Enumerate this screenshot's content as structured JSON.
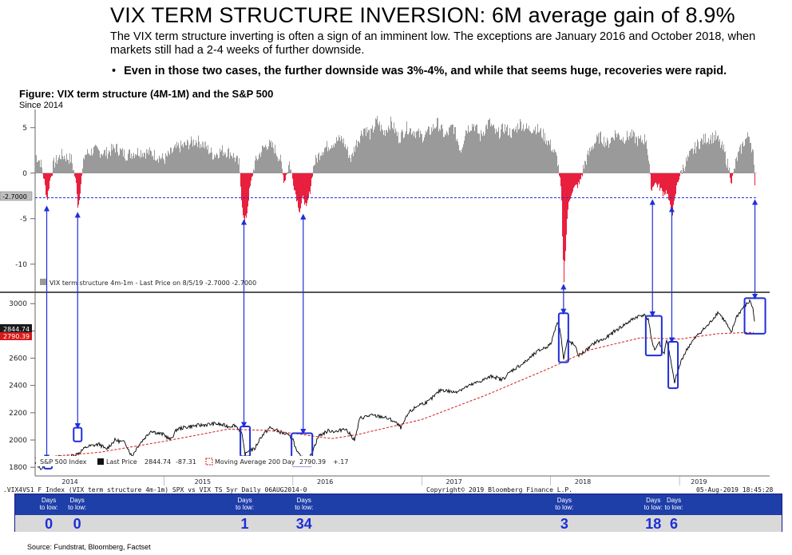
{
  "header": {
    "title": "VIX TERM STRUCTURE INVERSION: 6M average gain of 8.9%",
    "subtitle": "The VIX term structure inverting is often a sign of an imminent low.  The exceptions are January 2016 and October 2018, when markets still had a 2-4 weeks of further downside.",
    "bullet": "Even in those two cases, the further downside was 3%-4%, and while that seems huge, recoveries were rapid."
  },
  "figure": {
    "title": "Figure: VIX term structure (4M-1M) and the S&P 500",
    "subtitle": "Since 2014"
  },
  "chart_data": [
    {
      "type": "bar",
      "title": "VIX term structure 4m-1m",
      "legend": "VIX term structure 4m-1m - Last Price on 8/5/19 -2.7000  -2.7000",
      "last_price": -2.7,
      "last_price_label": "-2.7000",
      "threshold": -2.7,
      "ylim": [
        -13,
        7
      ],
      "yticks": [
        5,
        0,
        -5,
        -10
      ],
      "ytick_labels": [
        "5",
        "0",
        "-5",
        "-10"
      ],
      "x_start": 2014.0,
      "x_end": 2019.6,
      "series_points": [
        [
          2014.0,
          2.0
        ],
        [
          2014.04,
          1.2
        ],
        [
          2014.07,
          -1.0
        ],
        [
          2014.09,
          -3.0
        ],
        [
          2014.11,
          -1.0
        ],
        [
          2014.14,
          1.0
        ],
        [
          2014.2,
          2.0
        ],
        [
          2014.28,
          1.5
        ],
        [
          2014.32,
          -1.5
        ],
        [
          2014.33,
          -4.0
        ],
        [
          2014.35,
          -1.5
        ],
        [
          2014.38,
          2.0
        ],
        [
          2014.45,
          2.5
        ],
        [
          2014.55,
          2.2
        ],
        [
          2014.62,
          2.8
        ],
        [
          2014.7,
          2.0
        ],
        [
          2014.8,
          2.4
        ],
        [
          2014.9,
          2.2
        ],
        [
          2015.0,
          1.5
        ],
        [
          2015.05,
          2.2
        ],
        [
          2015.1,
          2.8
        ],
        [
          2015.15,
          3.0
        ],
        [
          2015.25,
          3.6
        ],
        [
          2015.3,
          3.2
        ],
        [
          2015.38,
          2.0
        ],
        [
          2015.45,
          2.5
        ],
        [
          2015.52,
          2.2
        ],
        [
          2015.58,
          1.0
        ],
        [
          2015.6,
          -3.0
        ],
        [
          2015.62,
          -5.5
        ],
        [
          2015.64,
          -4.5
        ],
        [
          2015.66,
          -2.0
        ],
        [
          2015.7,
          1.0
        ],
        [
          2015.75,
          2.4
        ],
        [
          2015.8,
          3.2
        ],
        [
          2015.85,
          2.8
        ],
        [
          2015.9,
          1.5
        ],
        [
          2015.93,
          -1.0
        ],
        [
          2015.97,
          1.2
        ],
        [
          2016.0,
          -1.0
        ],
        [
          2016.03,
          -3.0
        ],
        [
          2016.05,
          -4.2
        ],
        [
          2016.08,
          -2.5
        ],
        [
          2016.1,
          -4.0
        ],
        [
          2016.13,
          -2.0
        ],
        [
          2016.16,
          1.0
        ],
        [
          2016.22,
          2.5
        ],
        [
          2016.3,
          3.3
        ],
        [
          2016.38,
          3.8
        ],
        [
          2016.45,
          1.5
        ],
        [
          2016.48,
          3.0
        ],
        [
          2016.55,
          5.0
        ],
        [
          2016.6,
          4.2
        ],
        [
          2016.65,
          5.8
        ],
        [
          2016.7,
          4.4
        ],
        [
          2016.76,
          5.6
        ],
        [
          2016.82,
          3.8
        ],
        [
          2016.88,
          5.0
        ],
        [
          2016.94,
          4.6
        ],
        [
          2017.0,
          4.0
        ],
        [
          2017.06,
          4.6
        ],
        [
          2017.12,
          5.5
        ],
        [
          2017.18,
          4.0
        ],
        [
          2017.24,
          5.2
        ],
        [
          2017.3,
          2.5
        ],
        [
          2017.34,
          4.8
        ],
        [
          2017.4,
          5.4
        ],
        [
          2017.45,
          4.0
        ],
        [
          2017.52,
          5.6
        ],
        [
          2017.58,
          4.2
        ],
        [
          2017.64,
          5.0
        ],
        [
          2017.7,
          4.3
        ],
        [
          2017.76,
          5.5
        ],
        [
          2017.82,
          4.8
        ],
        [
          2017.88,
          5.0
        ],
        [
          2017.94,
          4.2
        ],
        [
          2018.0,
          3.0
        ],
        [
          2018.05,
          1.5
        ],
        [
          2018.08,
          -2.0
        ],
        [
          2018.09,
          -8.0
        ],
        [
          2018.1,
          -12.0
        ],
        [
          2018.11,
          -9.0
        ],
        [
          2018.13,
          -4.0
        ],
        [
          2018.16,
          -2.0
        ],
        [
          2018.19,
          -1.5
        ],
        [
          2018.22,
          -1.2
        ],
        [
          2018.26,
          1.0
        ],
        [
          2018.32,
          3.0
        ],
        [
          2018.38,
          4.0
        ],
        [
          2018.44,
          3.2
        ],
        [
          2018.5,
          4.4
        ],
        [
          2018.56,
          3.8
        ],
        [
          2018.62,
          4.2
        ],
        [
          2018.68,
          3.5
        ],
        [
          2018.74,
          3.8
        ],
        [
          2018.76,
          1.0
        ],
        [
          2018.78,
          -2.0
        ],
        [
          2018.8,
          -1.0
        ],
        [
          2018.84,
          -1.5
        ],
        [
          2018.87,
          -2.2
        ],
        [
          2018.9,
          -2.0
        ],
        [
          2018.92,
          -3.5
        ],
        [
          2018.94,
          -4.6
        ],
        [
          2018.96,
          -3.0
        ],
        [
          2018.98,
          -1.0
        ],
        [
          2019.02,
          0.5
        ],
        [
          2019.08,
          2.0
        ],
        [
          2019.14,
          3.2
        ],
        [
          2019.2,
          3.8
        ],
        [
          2019.28,
          4.0
        ],
        [
          2019.34,
          2.5
        ],
        [
          2019.38,
          0.5
        ],
        [
          2019.4,
          -1.0
        ],
        [
          2019.44,
          1.5
        ],
        [
          2019.5,
          3.5
        ],
        [
          2019.54,
          4.2
        ],
        [
          2019.57,
          2.0
        ],
        [
          2019.585,
          -2.7
        ]
      ]
    },
    {
      "type": "line",
      "title": "S&P 500 Index",
      "legend_name": "S&P 500 Index",
      "legend_last": "Last Price",
      "last_price_value": "2844.74",
      "last_change": "-87.31",
      "ma_legend": "Moving Average 200 Day",
      "ma_value": "2790.39",
      "ma_change": "+.17",
      "last_price_label": "2844.74",
      "ma_label": "2790.39",
      "ylim": [
        1760,
        3060
      ],
      "yticks": [
        3000,
        2800,
        2600,
        2400,
        2200,
        2000,
        1800
      ],
      "ytick_labels": [
        "3000",
        "2800",
        "2600",
        "2400",
        "2200",
        "2000",
        "1800"
      ],
      "x_labels": [
        "2014",
        "2015",
        "2016",
        "2017",
        "2018",
        "2019"
      ],
      "x_label_positions": [
        2014.27,
        2015.3,
        2016.25,
        2017.25,
        2018.25,
        2019.15
      ],
      "x_start": 2014.0,
      "x_end": 2019.6,
      "price_points": [
        [
          2014.0,
          1830
        ],
        [
          2014.05,
          1790
        ],
        [
          2014.1,
          1850
        ],
        [
          2014.2,
          1880
        ],
        [
          2014.25,
          1870
        ],
        [
          2014.33,
          1900
        ],
        [
          2014.4,
          1950
        ],
        [
          2014.5,
          1970
        ],
        [
          2014.55,
          1930
        ],
        [
          2014.62,
          2000
        ],
        [
          2014.7,
          1980
        ],
        [
          2014.75,
          1880
        ],
        [
          2014.8,
          1960
        ],
        [
          2014.9,
          2070
        ],
        [
          2014.95,
          2050
        ],
        [
          2015.0,
          2040
        ],
        [
          2015.05,
          2000
        ],
        [
          2015.1,
          2080
        ],
        [
          2015.2,
          2100
        ],
        [
          2015.3,
          2110
        ],
        [
          2015.4,
          2120
        ],
        [
          2015.5,
          2100
        ],
        [
          2015.55,
          2110
        ],
        [
          2015.6,
          2060
        ],
        [
          2015.63,
          1890
        ],
        [
          2015.66,
          1930
        ],
        [
          2015.7,
          1930
        ],
        [
          2015.75,
          2020
        ],
        [
          2015.82,
          2090
        ],
        [
          2015.9,
          2060
        ],
        [
          2015.95,
          2040
        ],
        [
          2016.0,
          2010
        ],
        [
          2016.03,
          1910
        ],
        [
          2016.06,
          1880
        ],
        [
          2016.1,
          1830
        ],
        [
          2016.13,
          1870
        ],
        [
          2016.2,
          2030
        ],
        [
          2016.28,
          2070
        ],
        [
          2016.35,
          2060
        ],
        [
          2016.4,
          2090
        ],
        [
          2016.48,
          2000
        ],
        [
          2016.52,
          2160
        ],
        [
          2016.6,
          2180
        ],
        [
          2016.7,
          2170
        ],
        [
          2016.78,
          2140
        ],
        [
          2016.84,
          2090
        ],
        [
          2016.9,
          2200
        ],
        [
          2016.98,
          2260
        ],
        [
          2017.05,
          2280
        ],
        [
          2017.15,
          2370
        ],
        [
          2017.25,
          2350
        ],
        [
          2017.35,
          2390
        ],
        [
          2017.45,
          2430
        ],
        [
          2017.55,
          2470
        ],
        [
          2017.62,
          2440
        ],
        [
          2017.7,
          2510
        ],
        [
          2017.8,
          2570
        ],
        [
          2017.9,
          2650
        ],
        [
          2018.0,
          2700
        ],
        [
          2018.05,
          2870
        ],
        [
          2018.08,
          2780
        ],
        [
          2018.1,
          2590
        ],
        [
          2018.13,
          2730
        ],
        [
          2018.18,
          2700
        ],
        [
          2018.22,
          2620
        ],
        [
          2018.28,
          2660
        ],
        [
          2018.35,
          2720
        ],
        [
          2018.42,
          2740
        ],
        [
          2018.5,
          2800
        ],
        [
          2018.58,
          2850
        ],
        [
          2018.66,
          2900
        ],
        [
          2018.72,
          2920
        ],
        [
          2018.76,
          2880
        ],
        [
          2018.78,
          2740
        ],
        [
          2018.81,
          2660
        ],
        [
          2018.84,
          2720
        ],
        [
          2018.88,
          2630
        ],
        [
          2018.9,
          2740
        ],
        [
          2018.93,
          2590
        ],
        [
          2018.96,
          2420
        ],
        [
          2018.98,
          2480
        ],
        [
          2019.02,
          2600
        ],
        [
          2019.08,
          2700
        ],
        [
          2019.15,
          2780
        ],
        [
          2019.22,
          2840
        ],
        [
          2019.3,
          2940
        ],
        [
          2019.36,
          2860
        ],
        [
          2019.4,
          2780
        ],
        [
          2019.44,
          2900
        ],
        [
          2019.5,
          2980
        ],
        [
          2019.55,
          3020
        ],
        [
          2019.57,
          2960
        ],
        [
          2019.585,
          2844
        ]
      ],
      "ma_points": [
        [
          2014.0,
          1870
        ],
        [
          2014.5,
          1910
        ],
        [
          2015.0,
          1990
        ],
        [
          2015.5,
          2080
        ],
        [
          2015.8,
          2070
        ],
        [
          2016.0,
          2050
        ],
        [
          2016.3,
          2010
        ],
        [
          2016.5,
          2040
        ],
        [
          2017.0,
          2150
        ],
        [
          2017.5,
          2330
        ],
        [
          2018.0,
          2530
        ],
        [
          2018.3,
          2660
        ],
        [
          2018.7,
          2750
        ],
        [
          2019.0,
          2740
        ],
        [
          2019.3,
          2780
        ],
        [
          2019.585,
          2790
        ]
      ]
    }
  ],
  "footer": {
    "left_text": ".VIX4VS1 F Index (VIX term structure 4m-1m) SPX vs VIX TS 5yr  Daily 06AUG2014-0",
    "copyright": "Copyright© 2019 Bloomberg Finance L.P.",
    "datetime": "05-Aug-2019 18:45:28"
  },
  "days_to_low": {
    "label": "Days to low:",
    "label_line1": "Days",
    "label_line2": "to low:",
    "events": [
      {
        "x": 2014.1,
        "value": "0"
      },
      {
        "x": 2014.32,
        "value": "0"
      },
      {
        "x": 2015.62,
        "value": "1"
      },
      {
        "x": 2016.08,
        "value": "34"
      },
      {
        "x": 2018.1,
        "value": "3"
      },
      {
        "x": 2018.79,
        "value": "18"
      },
      {
        "x": 2018.95,
        "value": "6"
      }
    ]
  },
  "source": "Source: Fundstrat, Bloomberg, Factset",
  "colors": {
    "positive_bar": "#9a9a9a",
    "negative_bar": "#e8203e",
    "threshold_line": "#1f2fd8",
    "arrow": "#1f2fd8",
    "price_line": "#000000",
    "ma_line": "#d61a1a",
    "box": "#1f2fd8"
  }
}
